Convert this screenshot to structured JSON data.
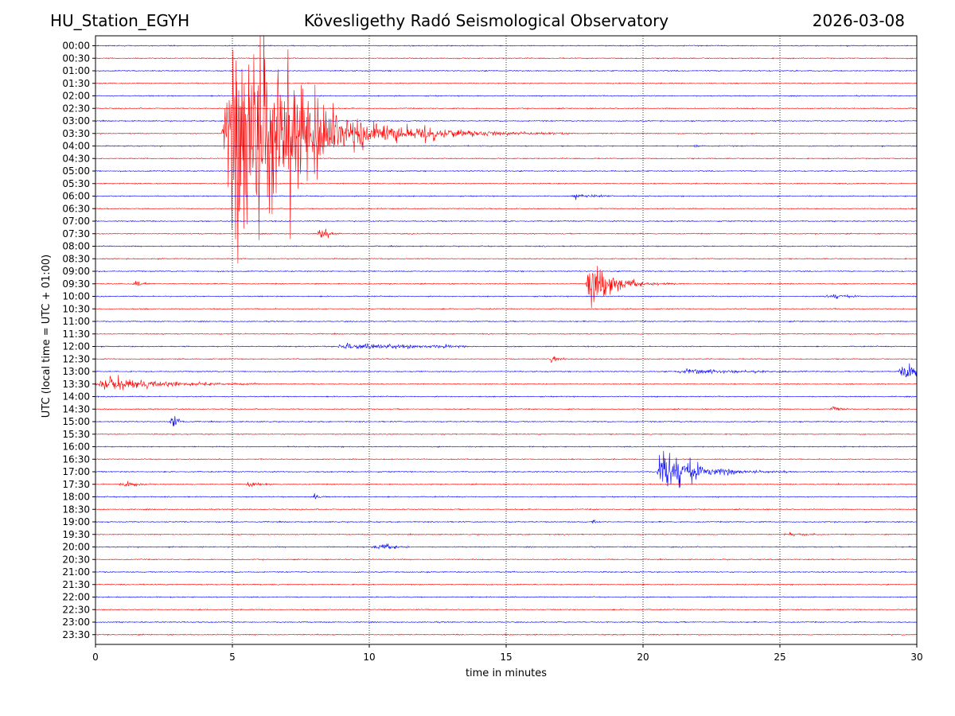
{
  "header": {
    "station": "HU_Station_EGYH",
    "observatory": "Kövesligethy Radó Seismological Observatory",
    "date": "2026-03-08"
  },
  "chart_data": {
    "type": "line",
    "title": "Kövesligethy Radó Seismological Observatory",
    "xlabel": "time in minutes",
    "ylabel": "UTC (local time = UTC + 01:00)",
    "xlim": [
      0,
      30
    ],
    "x_ticks": [
      "0",
      "5",
      "10",
      "15",
      "20",
      "25",
      "30"
    ],
    "x_tick_values": [
      0,
      5,
      10,
      15,
      20,
      25,
      30
    ],
    "grid": "vertical dotted lines at each x tick",
    "trace_colors": [
      "#0000ff",
      "#ff0000"
    ],
    "rows": [
      "00:00",
      "00:30",
      "01:00",
      "01:30",
      "02:00",
      "02:30",
      "03:00",
      "03:30",
      "04:00",
      "04:30",
      "05:00",
      "05:30",
      "06:00",
      "06:30",
      "07:00",
      "07:30",
      "08:00",
      "08:30",
      "09:00",
      "09:30",
      "10:00",
      "10:30",
      "11:00",
      "11:30",
      "12:00",
      "12:30",
      "13:00",
      "13:30",
      "14:00",
      "14:30",
      "15:00",
      "15:30",
      "16:00",
      "16:30",
      "17:00",
      "17:30",
      "18:00",
      "18:30",
      "19:00",
      "19:30",
      "20:00",
      "20:30",
      "21:00",
      "21:30",
      "22:00",
      "22:30",
      "23:00",
      "23:30"
    ],
    "events": [
      {
        "row": "03:30",
        "onset_min": 4.6,
        "peak_min": 5.3,
        "end_min": 12.5,
        "amplitude": 16,
        "decay": 2.0
      },
      {
        "row": "03:30",
        "onset_min": 12.0,
        "peak_min": 12.0,
        "end_min": 17.5,
        "amplitude": 0.6,
        "decay": 2.5
      },
      {
        "row": "09:30",
        "onset_min": 17.9,
        "peak_min": 18.0,
        "end_min": 21.5,
        "amplitude": 3.5,
        "decay": 0.7
      },
      {
        "row": "17:00",
        "onset_min": 20.5,
        "peak_min": 20.6,
        "end_min": 25.5,
        "amplitude": 3.5,
        "decay": 1.0
      },
      {
        "row": "13:30",
        "onset_min": 0.0,
        "peak_min": 0.4,
        "end_min": 6.0,
        "amplitude": 0.8,
        "decay": 2.0
      },
      {
        "row": "13:00",
        "onset_min": 29.3,
        "peak_min": 29.6,
        "end_min": 30.0,
        "amplitude": 1.2,
        "decay": 1.0
      },
      {
        "row": "15:00",
        "onset_min": 2.7,
        "peak_min": 2.8,
        "end_min": 3.3,
        "amplitude": 1.0,
        "decay": 0.2
      },
      {
        "row": "07:30",
        "onset_min": 8.1,
        "peak_min": 8.2,
        "end_min": 9.0,
        "amplitude": 1.0,
        "decay": 0.2
      },
      {
        "row": "06:00",
        "onset_min": 17.4,
        "peak_min": 17.6,
        "end_min": 19.0,
        "amplitude": 0.3,
        "decay": 0.6
      },
      {
        "row": "12:00",
        "onset_min": 8.8,
        "peak_min": 9.0,
        "end_min": 13.5,
        "amplitude": 0.35,
        "decay": 3.0
      },
      {
        "row": "17:30",
        "onset_min": 5.5,
        "peak_min": 5.6,
        "end_min": 6.5,
        "amplitude": 0.5,
        "decay": 0.3
      },
      {
        "row": "17:30",
        "onset_min": 0.8,
        "peak_min": 1.2,
        "end_min": 2.0,
        "amplitude": 0.4,
        "decay": 0.3
      },
      {
        "row": "12:30",
        "onset_min": 16.5,
        "peak_min": 16.7,
        "end_min": 17.2,
        "amplitude": 0.5,
        "decay": 0.2
      },
      {
        "row": "20:00",
        "onset_min": 10.0,
        "peak_min": 10.5,
        "end_min": 11.5,
        "amplitude": 0.3,
        "decay": 0.5
      },
      {
        "row": "14:30",
        "onset_min": 26.8,
        "peak_min": 27.0,
        "end_min": 27.5,
        "amplitude": 0.5,
        "decay": 0.2
      },
      {
        "row": "13:00",
        "onset_min": 21.0,
        "peak_min": 21.5,
        "end_min": 26.0,
        "amplitude": 0.25,
        "decay": 2.0
      },
      {
        "row": "09:30",
        "onset_min": 1.3,
        "peak_min": 1.5,
        "end_min": 2.0,
        "amplitude": 0.3,
        "decay": 0.2
      },
      {
        "row": "10:00",
        "onset_min": 26.5,
        "peak_min": 27.0,
        "end_min": 28.5,
        "amplitude": 0.25,
        "decay": 0.5
      },
      {
        "row": "04:00",
        "onset_min": 21.8,
        "peak_min": 21.9,
        "end_min": 22.3,
        "amplitude": 0.3,
        "decay": 0.1
      },
      {
        "row": "18:00",
        "onset_min": 7.9,
        "peak_min": 8.0,
        "end_min": 8.5,
        "amplitude": 0.3,
        "decay": 0.1
      },
      {
        "row": "19:00",
        "onset_min": 18.1,
        "peak_min": 18.2,
        "end_min": 18.6,
        "amplitude": 0.3,
        "decay": 0.1
      },
      {
        "row": "19:30",
        "onset_min": 25.0,
        "peak_min": 25.5,
        "end_min": 26.5,
        "amplitude": 0.2,
        "decay": 0.5
      }
    ]
  }
}
